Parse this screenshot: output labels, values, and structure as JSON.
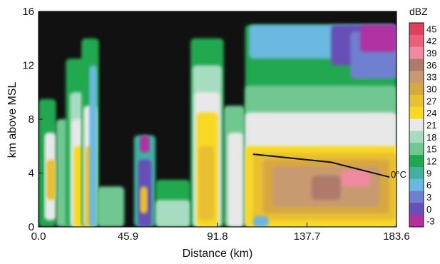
{
  "chart_data": {
    "type": "heatmap",
    "xlabel": "Distance (km)",
    "ylabel": "km above MSL",
    "xlim": [
      0,
      183.6
    ],
    "ylim": [
      0,
      16
    ],
    "x_ticks": [
      "0.0",
      "45.9",
      "91.8",
      "137.7",
      "183.6"
    ],
    "x_tick_values": [
      0,
      45.9,
      91.8,
      137.7,
      183.6
    ],
    "y_ticks": [
      "0",
      "4",
      "8",
      "12",
      "16"
    ],
    "y_tick_values": [
      0,
      4,
      8,
      12,
      16
    ],
    "colorbar": {
      "title": "dBZ",
      "levels": [
        "45",
        "42",
        "39",
        "36",
        "33",
        "30",
        "27",
        "24",
        "21",
        "18",
        "15",
        "12",
        "9",
        "6",
        "3",
        "0",
        "-3"
      ],
      "colors": [
        "#e0405a",
        "#e8607a",
        "#f08aa0",
        "#b07a6a",
        "#c89a70",
        "#d8a840",
        "#e8c030",
        "#f8d820",
        "#e8e8e8",
        "#a8dcc0",
        "#70c890",
        "#20a850",
        "#40b0a0",
        "#6ab8e0",
        "#7080d0",
        "#6850b8",
        "#b030a0"
      ]
    },
    "isotherm_label": "0°C",
    "isotherm_points": [
      [
        110,
        5.4
      ],
      [
        150,
        4.8
      ],
      [
        180,
        3.7
      ]
    ],
    "background_color": "#111111",
    "cells": [
      {
        "x": [
          0,
          9
        ],
        "y": [
          0,
          9.5
        ],
        "dbz": 12
      },
      {
        "x": [
          3,
          9
        ],
        "y": [
          0.5,
          7
        ],
        "dbz": 21
      },
      {
        "x": [
          4,
          9
        ],
        "y": [
          2,
          5
        ],
        "dbz": 27
      },
      {
        "x": [
          9,
          28
        ],
        "y": [
          0,
          8
        ],
        "dbz": 15
      },
      {
        "x": [
          14,
          27
        ],
        "y": [
          0,
          12.5
        ],
        "dbz": 12
      },
      {
        "x": [
          16,
          26
        ],
        "y": [
          0,
          10
        ],
        "dbz": 18
      },
      {
        "x": [
          17,
          25
        ],
        "y": [
          0,
          8
        ],
        "dbz": 21
      },
      {
        "x": [
          18,
          24
        ],
        "y": [
          0,
          6
        ],
        "dbz": 24
      },
      {
        "x": [
          22,
          31
        ],
        "y": [
          0,
          14
        ],
        "dbz": 12
      },
      {
        "x": [
          23,
          30
        ],
        "y": [
          0,
          9
        ],
        "dbz": 21
      },
      {
        "x": [
          24,
          29
        ],
        "y": [
          0,
          6
        ],
        "dbz": 27
      },
      {
        "x": [
          26,
          30
        ],
        "y": [
          0,
          12
        ],
        "dbz": 6
      },
      {
        "x": [
          30,
          44
        ],
        "y": [
          0,
          3
        ],
        "dbz": 15
      },
      {
        "x": [
          49,
          60
        ],
        "y": [
          0,
          6.8
        ],
        "dbz": 9
      },
      {
        "x": [
          51,
          58
        ],
        "y": [
          0,
          5
        ],
        "dbz": 0
      },
      {
        "x": [
          52,
          56
        ],
        "y": [
          1,
          3
        ],
        "dbz": 27
      },
      {
        "x": [
          52,
          57
        ],
        "y": [
          5.5,
          6.8
        ],
        "dbz": -3
      },
      {
        "x": [
          60,
          78
        ],
        "y": [
          0,
          3.5
        ],
        "dbz": 12
      },
      {
        "x": [
          60,
          78
        ],
        "y": [
          0,
          2
        ],
        "dbz": 18
      },
      {
        "x": [
          78,
          95
        ],
        "y": [
          0,
          14
        ],
        "dbz": 12
      },
      {
        "x": [
          79,
          94
        ],
        "y": [
          0,
          12
        ],
        "dbz": 18
      },
      {
        "x": [
          80,
          93
        ],
        "y": [
          0,
          10
        ],
        "dbz": 21
      },
      {
        "x": [
          81,
          92
        ],
        "y": [
          0,
          8.5
        ],
        "dbz": 24
      },
      {
        "x": [
          82,
          90
        ],
        "y": [
          0.5,
          6
        ],
        "dbz": 27
      },
      {
        "x": [
          95,
          106
        ],
        "y": [
          0,
          9
        ],
        "dbz": 15
      },
      {
        "x": [
          97,
          105
        ],
        "y": [
          0,
          7
        ],
        "dbz": 21
      },
      {
        "x": [
          106,
          183.6
        ],
        "y": [
          0,
          15
        ],
        "dbz": 12
      },
      {
        "x": [
          108,
          183.6
        ],
        "y": [
          12.5,
          15
        ],
        "dbz": 6
      },
      {
        "x": [
          150,
          183.6
        ],
        "y": [
          12,
          15
        ],
        "dbz": 0
      },
      {
        "x": [
          160,
          183.6
        ],
        "y": [
          11,
          14.5
        ],
        "dbz": 3
      },
      {
        "x": [
          165,
          183.6
        ],
        "y": [
          13,
          15
        ],
        "dbz": -3
      },
      {
        "x": [
          106,
          183.6
        ],
        "y": [
          0,
          10.5
        ],
        "dbz": 15
      },
      {
        "x": [
          106,
          183.6
        ],
        "y": [
          0,
          8.5
        ],
        "dbz": 21
      },
      {
        "x": [
          106,
          183.6
        ],
        "y": [
          0,
          6
        ],
        "dbz": 24
      },
      {
        "x": [
          110,
          183.6
        ],
        "y": [
          0.5,
          5.5
        ],
        "dbz": 27
      },
      {
        "x": [
          115,
          180
        ],
        "y": [
          1,
          5
        ],
        "dbz": 30
      },
      {
        "x": [
          120,
          175
        ],
        "y": [
          1.5,
          4.5
        ],
        "dbz": 33
      },
      {
        "x": [
          155,
          170
        ],
        "y": [
          3,
          4.2
        ],
        "dbz": 39
      },
      {
        "x": [
          140,
          155
        ],
        "y": [
          2,
          3.8
        ],
        "dbz": 36
      },
      {
        "x": [
          110,
          118
        ],
        "y": [
          0,
          0.8
        ],
        "dbz": 6
      }
    ]
  }
}
